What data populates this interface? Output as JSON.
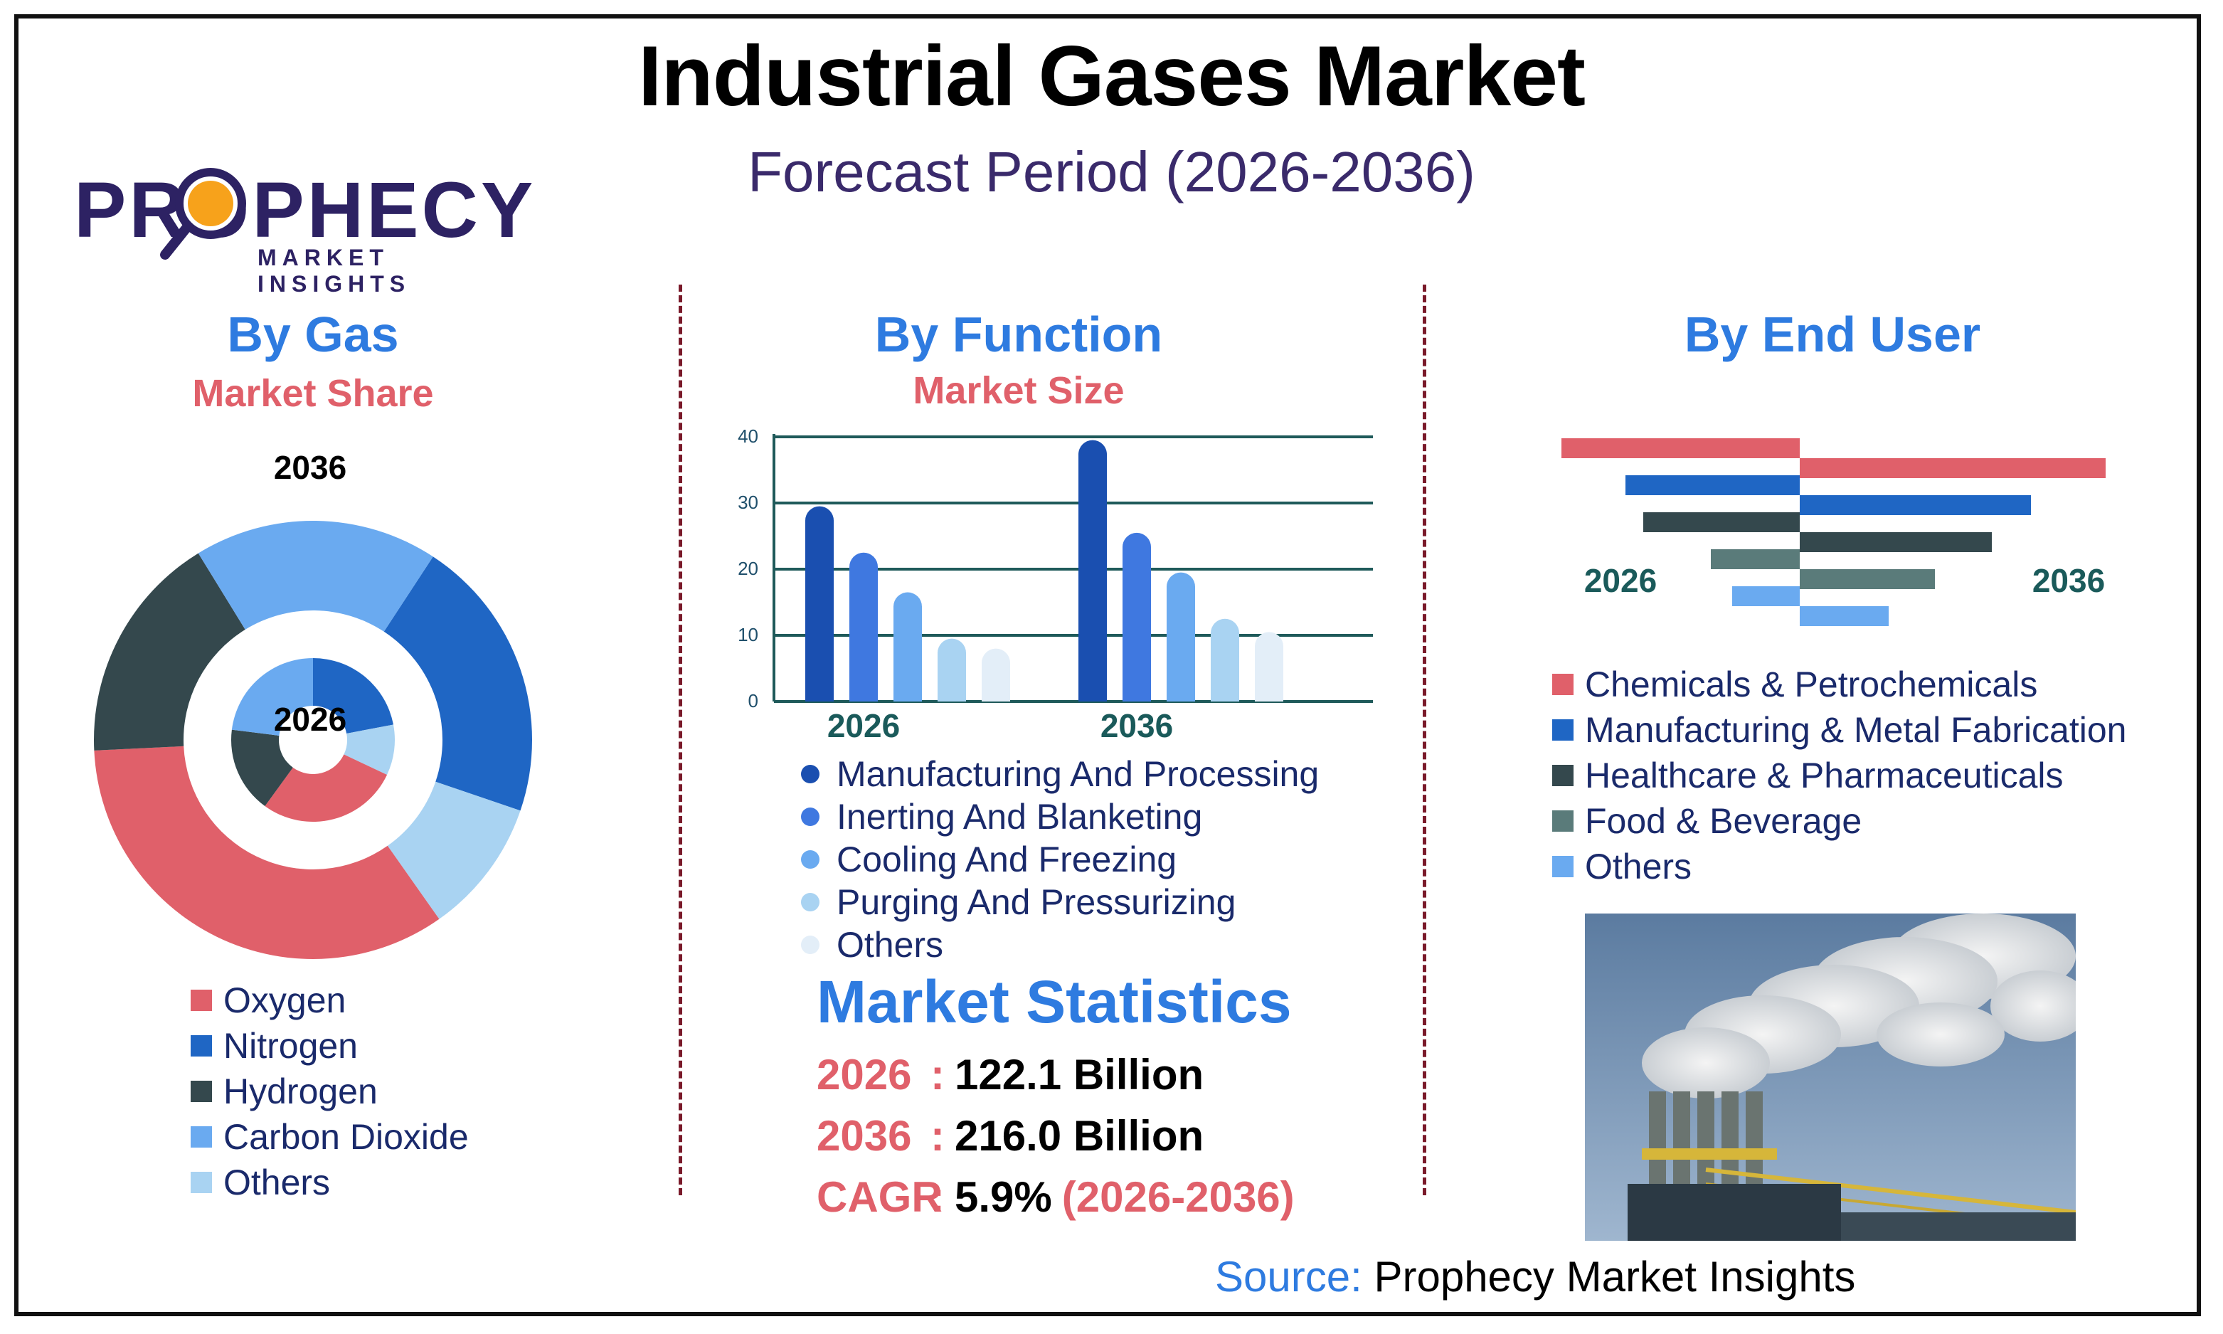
{
  "title": "Industrial Gases Market",
  "subtitle": "Forecast Period (2026-2036)",
  "logo": {
    "word": "PROPHECY",
    "sub": "MARKET INSIGHTS"
  },
  "colors": {
    "red": "#e0606a",
    "blue": "#1f66c4",
    "dark": "#34484d",
    "light_blue": "#6aaaf0",
    "pale_blue": "#a9d3f2",
    "teal_grey": "#5a7b7a",
    "title_blue": "#2e7be0"
  },
  "gas": {
    "title": "By Gas",
    "subtitle": "Market Share",
    "outer_label": "2036",
    "inner_label": "2026",
    "legend": [
      "Oxygen",
      "Nitrogen",
      "Hydrogen",
      "Carbon Dioxide",
      "Others"
    ]
  },
  "function": {
    "title": "By Function",
    "subtitle": "Market Size",
    "legend": [
      "Manufacturing And Processing",
      "Inerting And Blanketing",
      "Cooling And Freezing",
      "Purging And Pressurizing",
      "Others"
    ]
  },
  "end_user": {
    "title": "By End User",
    "left_year": "2026",
    "right_year": "2036",
    "legend": [
      "Chemicals & Petrochemicals",
      "Manufacturing & Metal Fabrication",
      "Healthcare & Pharmaceuticals",
      "Food & Beverage",
      "Others"
    ]
  },
  "stats": {
    "title": "Market Statistics",
    "rows": [
      {
        "key": "2026",
        "colon": ":",
        "value": "122.1 Billion",
        "tail": ""
      },
      {
        "key": "2036",
        "colon": ":",
        "value": "216.0 Billion",
        "tail": ""
      },
      {
        "key": "CAGR",
        "colon": ":",
        "value": "5.9%",
        "tail": "(2026-2036)"
      }
    ]
  },
  "source": {
    "label": "Source:",
    "text": "Prophecy Market Insights"
  },
  "chart_data": [
    {
      "type": "pie",
      "title": "By Gas",
      "subtitle": "Market Share",
      "categories": [
        "Oxygen",
        "Nitrogen",
        "Hydrogen",
        "Carbon Dioxide",
        "Others"
      ],
      "series": [
        {
          "name": "2036",
          "values": [
            34,
            21,
            17,
            18,
            10
          ]
        },
        {
          "name": "2026",
          "values": [
            28,
            22,
            17,
            23,
            10
          ]
        }
      ],
      "colors": [
        "#e0606a",
        "#1f66c4",
        "#34484d",
        "#6aaaf0",
        "#a9d3f2"
      ]
    },
    {
      "type": "bar",
      "title": "By Function",
      "subtitle": "Market Size",
      "categories": [
        "2026",
        "2036"
      ],
      "series": [
        {
          "name": "Manufacturing And Processing",
          "values": [
            29.5,
            39.5
          ]
        },
        {
          "name": "Inerting And Blanketing",
          "values": [
            22.5,
            25.5
          ]
        },
        {
          "name": "Cooling And Freezing",
          "values": [
            16.5,
            19.5
          ]
        },
        {
          "name": "Purging And Pressurizing",
          "values": [
            9.5,
            12.5
          ]
        },
        {
          "name": "Others",
          "values": [
            8,
            10.5
          ]
        }
      ],
      "ylim": [
        0,
        40
      ],
      "yticks": [
        "0",
        "10",
        "20",
        "30",
        "40"
      ],
      "grid": true,
      "colors": [
        "#1a4fb0",
        "#3f78e0",
        "#6aaaf0",
        "#a9d3f2",
        "#e3eef8"
      ]
    },
    {
      "type": "bar",
      "title": "By End User",
      "categories": [
        "Chemicals & Petrochemicals",
        "Manufacturing & Metal Fabrication",
        "Healthcare & Pharmaceuticals",
        "Food & Beverage",
        "Others"
      ],
      "series": [
        {
          "name": "2026",
          "values": [
            33.5,
            24.5,
            22,
            12.5,
            9.5
          ]
        },
        {
          "name": "2036",
          "values": [
            43,
            32.5,
            27,
            19,
            12.5
          ]
        }
      ],
      "orientation": "horizontal-butterfly",
      "xlim": [
        0,
        45
      ],
      "colors": [
        "#e0606a",
        "#1f66c4",
        "#34484d",
        "#5a7b7a",
        "#6aaaf0"
      ]
    }
  ]
}
